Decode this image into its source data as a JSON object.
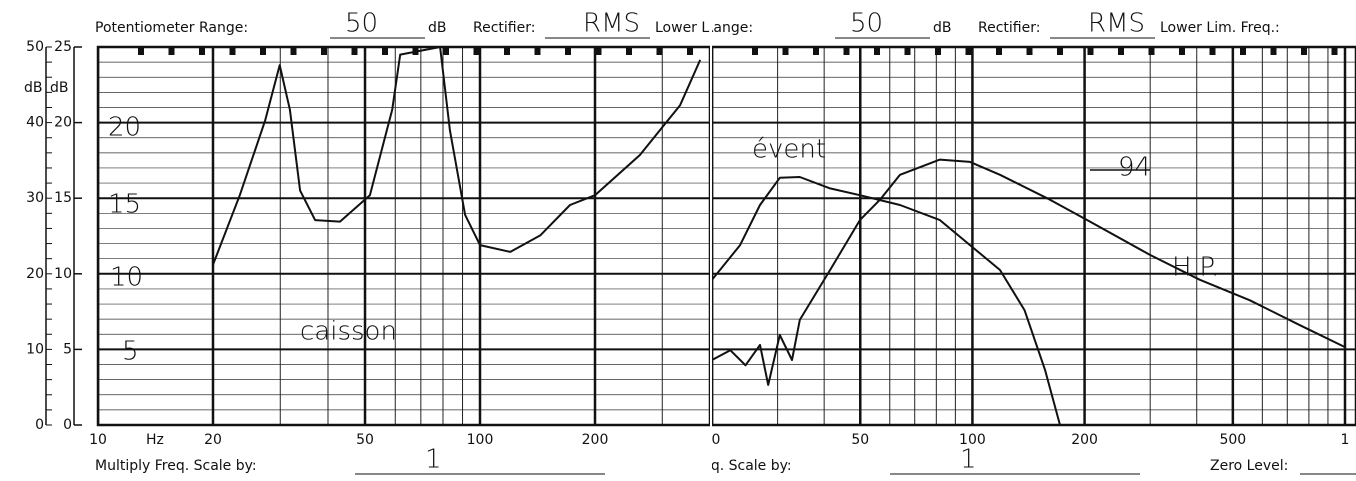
{
  "chart_data": [
    {
      "type": "line",
      "header": {
        "range_label": "Potentiometer Range:",
        "range_value": "50",
        "range_unit": "dB",
        "rectifier_label": "Rectifier:",
        "rectifier_value": "RMS",
        "lower_label": "Lower Lim. Freq.:"
      },
      "footer": {
        "multiply_label": "Multiply Freq. Scale by:",
        "multiply_value": "1"
      },
      "x_unit": "Hz",
      "y_unit": "dB",
      "y2_unit": "dB",
      "log_x": true,
      "grid": true,
      "xlim": [
        10,
        400
      ],
      "xticks": [
        10,
        20,
        50,
        100,
        200
      ],
      "x_minor_grid": [
        30,
        40,
        60,
        70,
        80,
        90,
        300
      ],
      "y_minor_step": 2,
      "ylim": [
        0,
        50
      ],
      "yticks": [
        0,
        10,
        20,
        30,
        40,
        50
      ],
      "y2lim": [
        0,
        25
      ],
      "y2ticks": [
        0,
        5,
        10,
        15,
        20,
        25
      ],
      "annotations": [
        "20",
        "15",
        "10",
        "5",
        "caisson"
      ],
      "series": [
        {
          "name": "caisson",
          "color": "#111111",
          "x": [
            20,
            23.5,
            27.4,
            29.9,
            31.8,
            33.8,
            37,
            43,
            51.5,
            58.9,
            61.8,
            78.6,
            83.4,
            91.4,
            100,
            120,
            144,
            172,
            200,
            262,
            334,
            377
          ],
          "values": [
            21.2,
            30.4,
            40.3,
            47.6,
            41.7,
            31,
            27.1,
            26.9,
            30.4,
            41.7,
            49,
            50,
            39,
            27.8,
            23.8,
            22.9,
            25.1,
            29.1,
            30.4,
            35.7,
            42.3,
            48.3
          ]
        }
      ]
    },
    {
      "type": "line",
      "header": {
        "range_label": "Potentiometer Range:",
        "range_value": "50",
        "range_unit": "dB",
        "rectifier_label": "Rectifier:",
        "rectifier_value": "RMS",
        "lower_label": "Lower Lim. Freq.:"
      },
      "footer": {
        "multiply_label": "Multiply Freq. Scale by:",
        "multiply_value": "1",
        "zero_label": "Zero Level:"
      },
      "log_x": true,
      "grid": true,
      "xlim": [
        20,
        1000
      ],
      "xticks": [
        {
          "value": 20,
          "label": "0"
        },
        50,
        100,
        200,
        500,
        {
          "value": 1000,
          "label": "1"
        }
      ],
      "x_minor_grid": [
        30,
        40,
        60,
        70,
        80,
        90,
        300,
        400,
        600,
        700,
        800,
        900
      ],
      "y_minor_step": 2,
      "ylim": [
        0,
        50
      ],
      "yticks": [
        0,
        10,
        20,
        30,
        40,
        50
      ],
      "annotations": [
        "évent",
        "94",
        "H.P."
      ],
      "series": [
        {
          "name": "évent",
          "color": "#111111",
          "x": [
            20,
            23.8,
            26.9,
            30.4,
            34.4,
            41.5,
            49.9,
            63.9,
            81.8,
            98.5,
            118.6,
            138,
            156.6,
            171.8
          ],
          "values": [
            19.2,
            23.8,
            29.1,
            32.7,
            32.8,
            31.3,
            30.4,
            29.1,
            27.1,
            23.8,
            20.5,
            15.2,
            7.3,
            0
          ]
        },
        {
          "name": "H.P.",
          "color": "#111111",
          "x": [
            20,
            22.4,
            24.6,
            26.9,
            28.3,
            30.4,
            32.8,
            34.4,
            41.5,
            49.9,
            56.5,
            63.9,
            81.8,
            98.5,
            118.6,
            161.5,
            206.8,
            299.6,
            408,
            555.6,
            756.9,
            1000
          ],
          "values": [
            8.6,
            9.9,
            7.9,
            10.6,
            5.3,
            11.9,
            8.6,
            13.9,
            20.5,
            27.1,
            29.8,
            33.1,
            35.1,
            34.8,
            33.1,
            29.8,
            26.9,
            22.5,
            19.2,
            16.5,
            13.2,
            10.3
          ]
        }
      ]
    }
  ]
}
